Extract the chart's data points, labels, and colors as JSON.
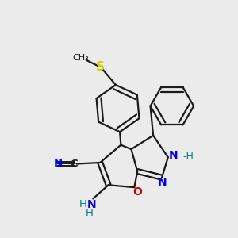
{
  "bg_color": "#ebebeb",
  "bond_color": "#1a1a1a",
  "N_color": "#0000ee",
  "O_color": "#cc0000",
  "S_color": "#cccc00",
  "H_color": "#008080",
  "figsize": [
    3.0,
    3.0
  ],
  "dpi": 100,
  "xlim": [
    0,
    10
  ],
  "ylim": [
    0,
    10
  ]
}
